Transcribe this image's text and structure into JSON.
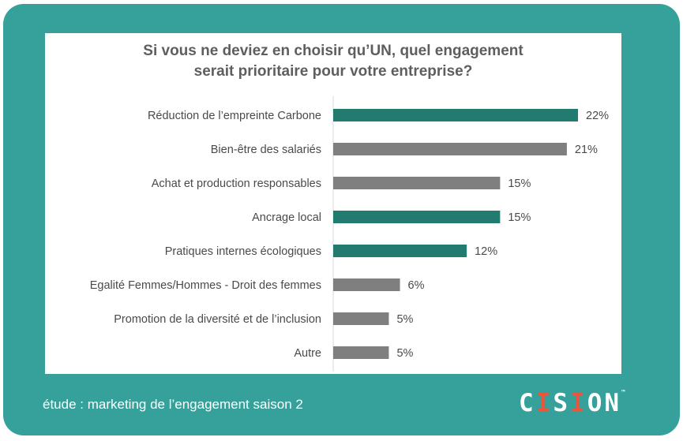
{
  "chart_data": {
    "type": "bar",
    "orientation": "horizontal",
    "title_lines": [
      "Si vous ne deviez en choisir qu’UN, quel engagement",
      "serait prioritaire pour votre entreprise?"
    ],
    "categories": [
      "Réduction de l’empreinte Carbone",
      "Bien-être des salariés",
      "Achat et production responsables",
      "Ancrage local",
      "Pratiques internes écologiques",
      "Egalité Femmes/Hommes - Droit des femmes",
      "Promotion de la diversité et de l’inclusion",
      "Autre"
    ],
    "values": [
      22,
      21,
      15,
      15,
      12,
      6,
      5,
      5
    ],
    "value_labels": [
      "22%",
      "21%",
      "15%",
      "15%",
      "12%",
      "6%",
      "5%",
      "5%"
    ],
    "highlighted": [
      true,
      false,
      false,
      true,
      true,
      false,
      false,
      false
    ],
    "unit": "%",
    "colors": {
      "highlight": "#237a6f",
      "normal": "#7f7f7f"
    },
    "grid": false
  },
  "footer": {
    "caption": "étude : marketing de l’engagement saison 2",
    "logo_text": "CISION",
    "logo_mark": "™"
  },
  "colors": {
    "frame": "#35a19a",
    "panel": "#ffffff",
    "logo_accent": "#e8573c"
  }
}
